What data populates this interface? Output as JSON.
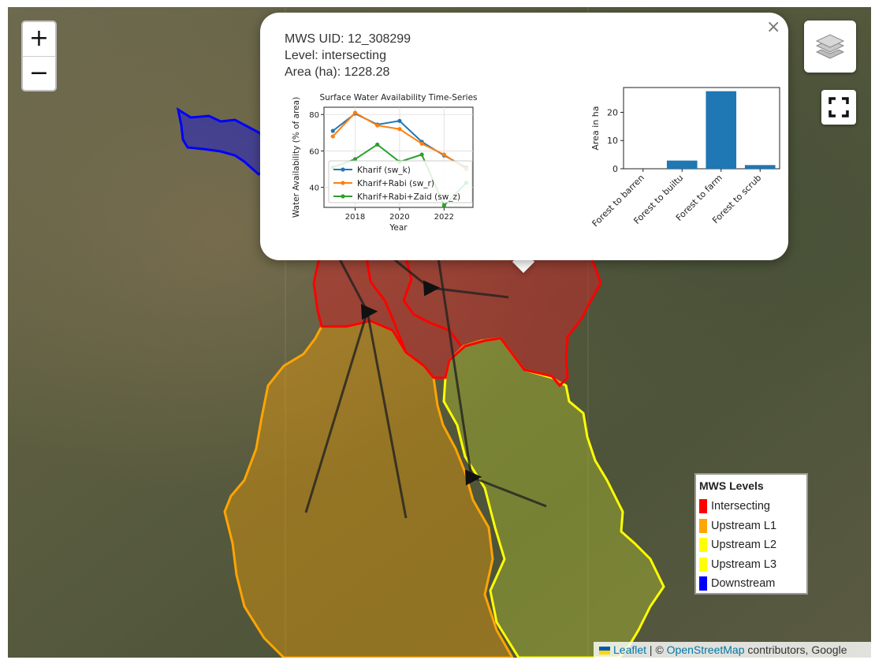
{
  "popup": {
    "uid": "MWS UID: 12_308299",
    "level": "Level: intersecting",
    "area": "Area (ha): 1228.28",
    "close_label": "×"
  },
  "map": {
    "zoom_in_label": "+",
    "zoom_out_label": "−",
    "layers_icon": "layers-icon",
    "fullscreen_icon": "fullscreen-icon"
  },
  "legend": {
    "title": "MWS Levels",
    "items": [
      {
        "label": "Intersecting",
        "color": "#ff0000"
      },
      {
        "label": "Upstream L1",
        "color": "#ffa500"
      },
      {
        "label": "Upstream L2",
        "color": "#ffff00"
      },
      {
        "label": "Upstream L3",
        "color": "#ffff00"
      },
      {
        "label": "Downstream",
        "color": "#0000ff"
      }
    ]
  },
  "attribution": {
    "leaflet_label": "Leaflet",
    "separator": " | © ",
    "osm_label": "OpenStreetMap",
    "suffix": " contributors, Google"
  },
  "chart_data": [
    {
      "type": "line",
      "title": "Surface Water Availability Time-Series",
      "xlabel": "Year",
      "ylabel": "Water Availability (% of area)",
      "x": [
        2017,
        2018,
        2019,
        2020,
        2021,
        2022,
        2023
      ],
      "xticks": [
        2018,
        2020,
        2022
      ],
      "yticks": [
        40,
        60,
        80
      ],
      "xlim": [
        2016.6,
        2023.3
      ],
      "ylim": [
        29,
        84
      ],
      "grid": true,
      "legend_position": "lower-left",
      "series": [
        {
          "name": "Kharif (sw_k)",
          "color": "#1f77b4",
          "values": [
            71,
            80.5,
            74.5,
            76.5,
            65,
            57.5,
            51
          ]
        },
        {
          "name": "Kharif+Rabi (sw_r)",
          "color": "#ff7f0e",
          "values": [
            68,
            81,
            74,
            72,
            64,
            58,
            50
          ]
        },
        {
          "name": "Kharif+Rabi+Zaid (sw_z)",
          "color": "#2ca02c",
          "values": [
            51,
            55.5,
            63.5,
            54,
            58,
            30,
            42.5
          ]
        }
      ]
    },
    {
      "type": "bar",
      "xlabel": "",
      "ylabel": "Area in ha",
      "categories": [
        "Forest to barren",
        "Forest to builtu",
        "Forest to farm",
        "Forest to scrub"
      ],
      "values": [
        0,
        2.9,
        27.5,
        1.3
      ],
      "yticks": [
        0,
        10,
        20
      ],
      "ylim": [
        0,
        28.8
      ],
      "color": "#1f77b4"
    }
  ]
}
